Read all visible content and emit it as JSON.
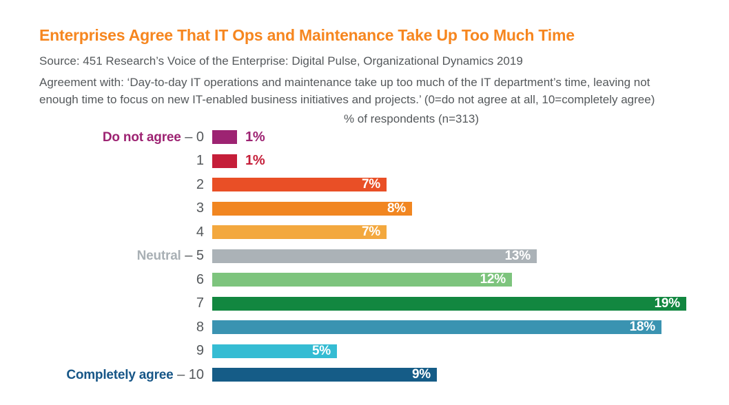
{
  "header": {
    "title": "Enterprises Agree That IT Ops and Maintenance Take Up Too Much Time",
    "source": "Source: 451 Research’s Voice of the Enterprise: Digital Pulse, Organizational Dynamics 2019",
    "description_line1": "Agreement with: ‘Day-to-day IT operations and maintenance take up too much of the IT department’s time, leaving not",
    "description_line2": "enough time to focus on new IT-enabled business initiatives and projects.’ (0=do not agree at all, 10=completely agree)"
  },
  "chart_data": {
    "type": "bar",
    "orientation": "horizontal",
    "axis_caption": "% of respondents (n=313)",
    "categories": [
      "0",
      "1",
      "2",
      "3",
      "4",
      "5",
      "6",
      "7",
      "8",
      "9",
      "10"
    ],
    "values": [
      1,
      1,
      7,
      8,
      7,
      13,
      12,
      19,
      18,
      5,
      9
    ],
    "value_labels": [
      "1%",
      "1%",
      "7%",
      "8%",
      "7%",
      "13%",
      "12%",
      "19%",
      "18%",
      "5%",
      "9%"
    ],
    "xlim": [
      0,
      19
    ],
    "grid": false,
    "legend": "none",
    "anchors": [
      {
        "index": 0,
        "text": "Do not agree",
        "color": "#9D2372"
      },
      {
        "index": 5,
        "text": "Neutral",
        "color": "#A9B0B5"
      },
      {
        "index": 10,
        "text": "Completely agree",
        "color": "#175687"
      }
    ],
    "bar_colors": [
      "#9D2372",
      "#C51E39",
      "#E94F26",
      "#F18621",
      "#F3A83E",
      "#ABB2B7",
      "#7DC47D",
      "#128740",
      "#3A93B1",
      "#35BCD3",
      "#155C87"
    ],
    "colors": {
      "title": "#F6861F",
      "text_gray": "#54585B",
      "value_label_inside": "#FFFFFF"
    }
  }
}
